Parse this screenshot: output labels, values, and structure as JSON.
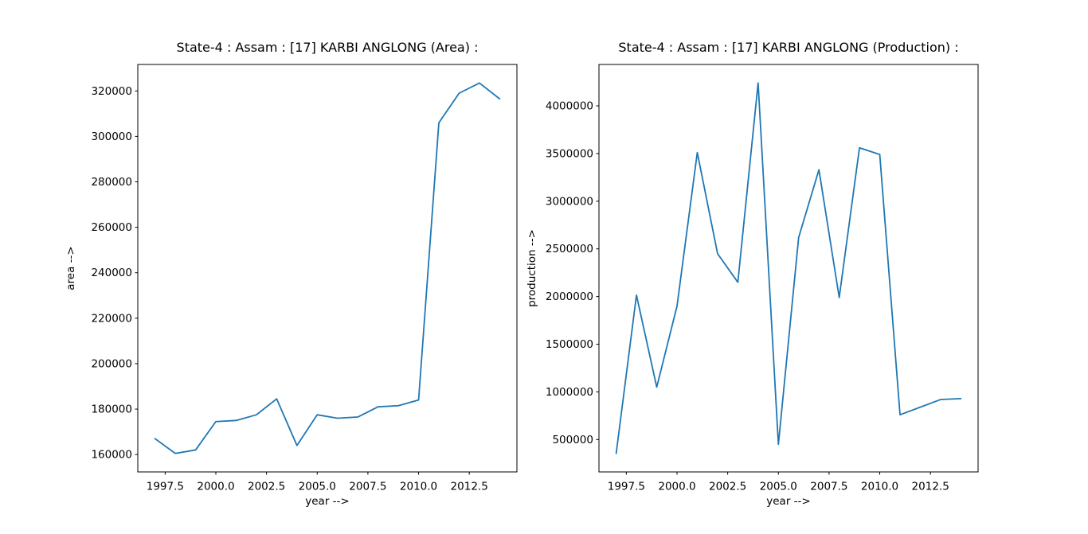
{
  "figure": {
    "background": "#ffffff",
    "line_color": "#1f77b4",
    "axis_color": "#000000"
  },
  "chart_data": [
    {
      "type": "line",
      "title": "State-4 : Assam : [17] KARBI ANGLONG (Area) :",
      "xlabel": "year -->",
      "ylabel": "area -->",
      "x": [
        1997,
        1998,
        1999,
        2000,
        2001,
        2002,
        2003,
        2004,
        2005,
        2006,
        2007,
        2008,
        2009,
        2010,
        2011,
        2012,
        2013,
        2014
      ],
      "y": [
        167000,
        160500,
        162000,
        174500,
        175000,
        177500,
        184500,
        164000,
        177500,
        176000,
        176500,
        181000,
        181500,
        184000,
        306000,
        319000,
        323500,
        316500
      ],
      "xlim": [
        1996.15,
        2014.85
      ],
      "ylim": [
        152350,
        331650
      ],
      "xticks": [
        1997.5,
        2000,
        2002.5,
        2005,
        2007.5,
        2010,
        2012.5
      ],
      "xtick_labels": [
        "1997.5",
        "2000.0",
        "2002.5",
        "2005.0",
        "2007.5",
        "2010.0",
        "2012.5"
      ],
      "yticks": [
        160000,
        180000,
        200000,
        220000,
        240000,
        260000,
        280000,
        300000,
        320000
      ],
      "ytick_labels": [
        "160000",
        "180000",
        "200000",
        "220000",
        "240000",
        "260000",
        "280000",
        "300000",
        "320000"
      ],
      "grid": false,
      "legend": "none"
    },
    {
      "type": "line",
      "title": "State-4 : Assam : [17] KARBI ANGLONG (Production) :",
      "xlabel": "year -->",
      "ylabel": "production -->",
      "x": [
        1997,
        1998,
        1999,
        2000,
        2001,
        2002,
        2003,
        2004,
        2005,
        2006,
        2007,
        2008,
        2009,
        2010,
        2011,
        2012,
        2013,
        2014
      ],
      "y": [
        355000,
        2015000,
        1050000,
        1900000,
        3510000,
        2450000,
        2150000,
        4240000,
        450000,
        2620000,
        3330000,
        1990000,
        3560000,
        3490000,
        760000,
        840000,
        920000,
        930000
      ],
      "xlim": [
        1996.15,
        2014.85
      ],
      "ylim": [
        160750,
        4434250
      ],
      "xticks": [
        1997.5,
        2000,
        2002.5,
        2005,
        2007.5,
        2010,
        2012.5
      ],
      "xtick_labels": [
        "1997.5",
        "2000.0",
        "2002.5",
        "2005.0",
        "2007.5",
        "2010.0",
        "2012.5"
      ],
      "yticks": [
        500000,
        1000000,
        1500000,
        2000000,
        2500000,
        3000000,
        3500000,
        4000000
      ],
      "ytick_labels": [
        "500000",
        "1000000",
        "1500000",
        "2000000",
        "2500000",
        "3000000",
        "3500000",
        "4000000"
      ],
      "grid": false,
      "legend": "none"
    }
  ]
}
